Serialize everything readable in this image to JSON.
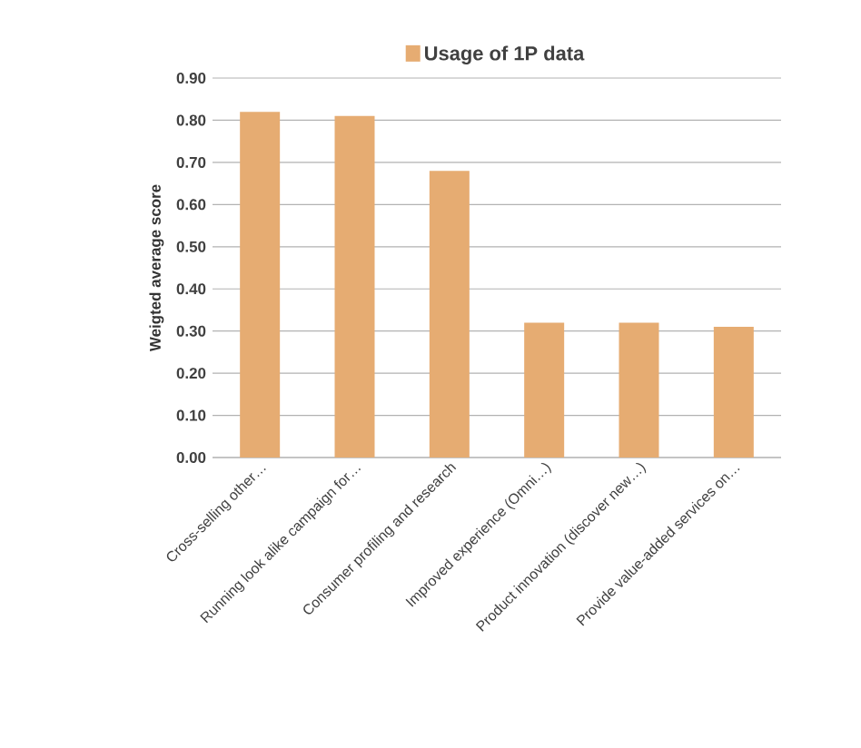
{
  "chart_data": {
    "type": "bar",
    "categories": [
      "Cross-selling other…",
      "Running look alike campaign for…",
      "Consumer profiling and research",
      "Improved experience (Omni…)",
      "Product innovation (discover new…)",
      "Provide value-added services on…"
    ],
    "series": [
      {
        "name": "Usage of 1P data",
        "color": "#e6ac72",
        "values": [
          0.82,
          0.81,
          0.68,
          0.32,
          0.32,
          0.31
        ]
      }
    ],
    "ylabel": "Weigted average score",
    "ylim": [
      0,
      0.9
    ],
    "yticks": [
      {
        "value": 0,
        "label": "0.00"
      },
      {
        "value": 0.1,
        "label": "0.10"
      },
      {
        "value": 0.2,
        "label": "0.20"
      },
      {
        "value": 0.3,
        "label": "0.30"
      },
      {
        "value": 0.4,
        "label": "0.40"
      },
      {
        "value": 0.5,
        "label": "0.50"
      },
      {
        "value": 0.6,
        "label": "0.60"
      },
      {
        "value": 0.7,
        "label": "0.70"
      },
      {
        "value": 0.8,
        "label": "0.80"
      },
      {
        "value": 0.9,
        "label": "0.90"
      }
    ],
    "grid": "y",
    "legend": "top"
  }
}
